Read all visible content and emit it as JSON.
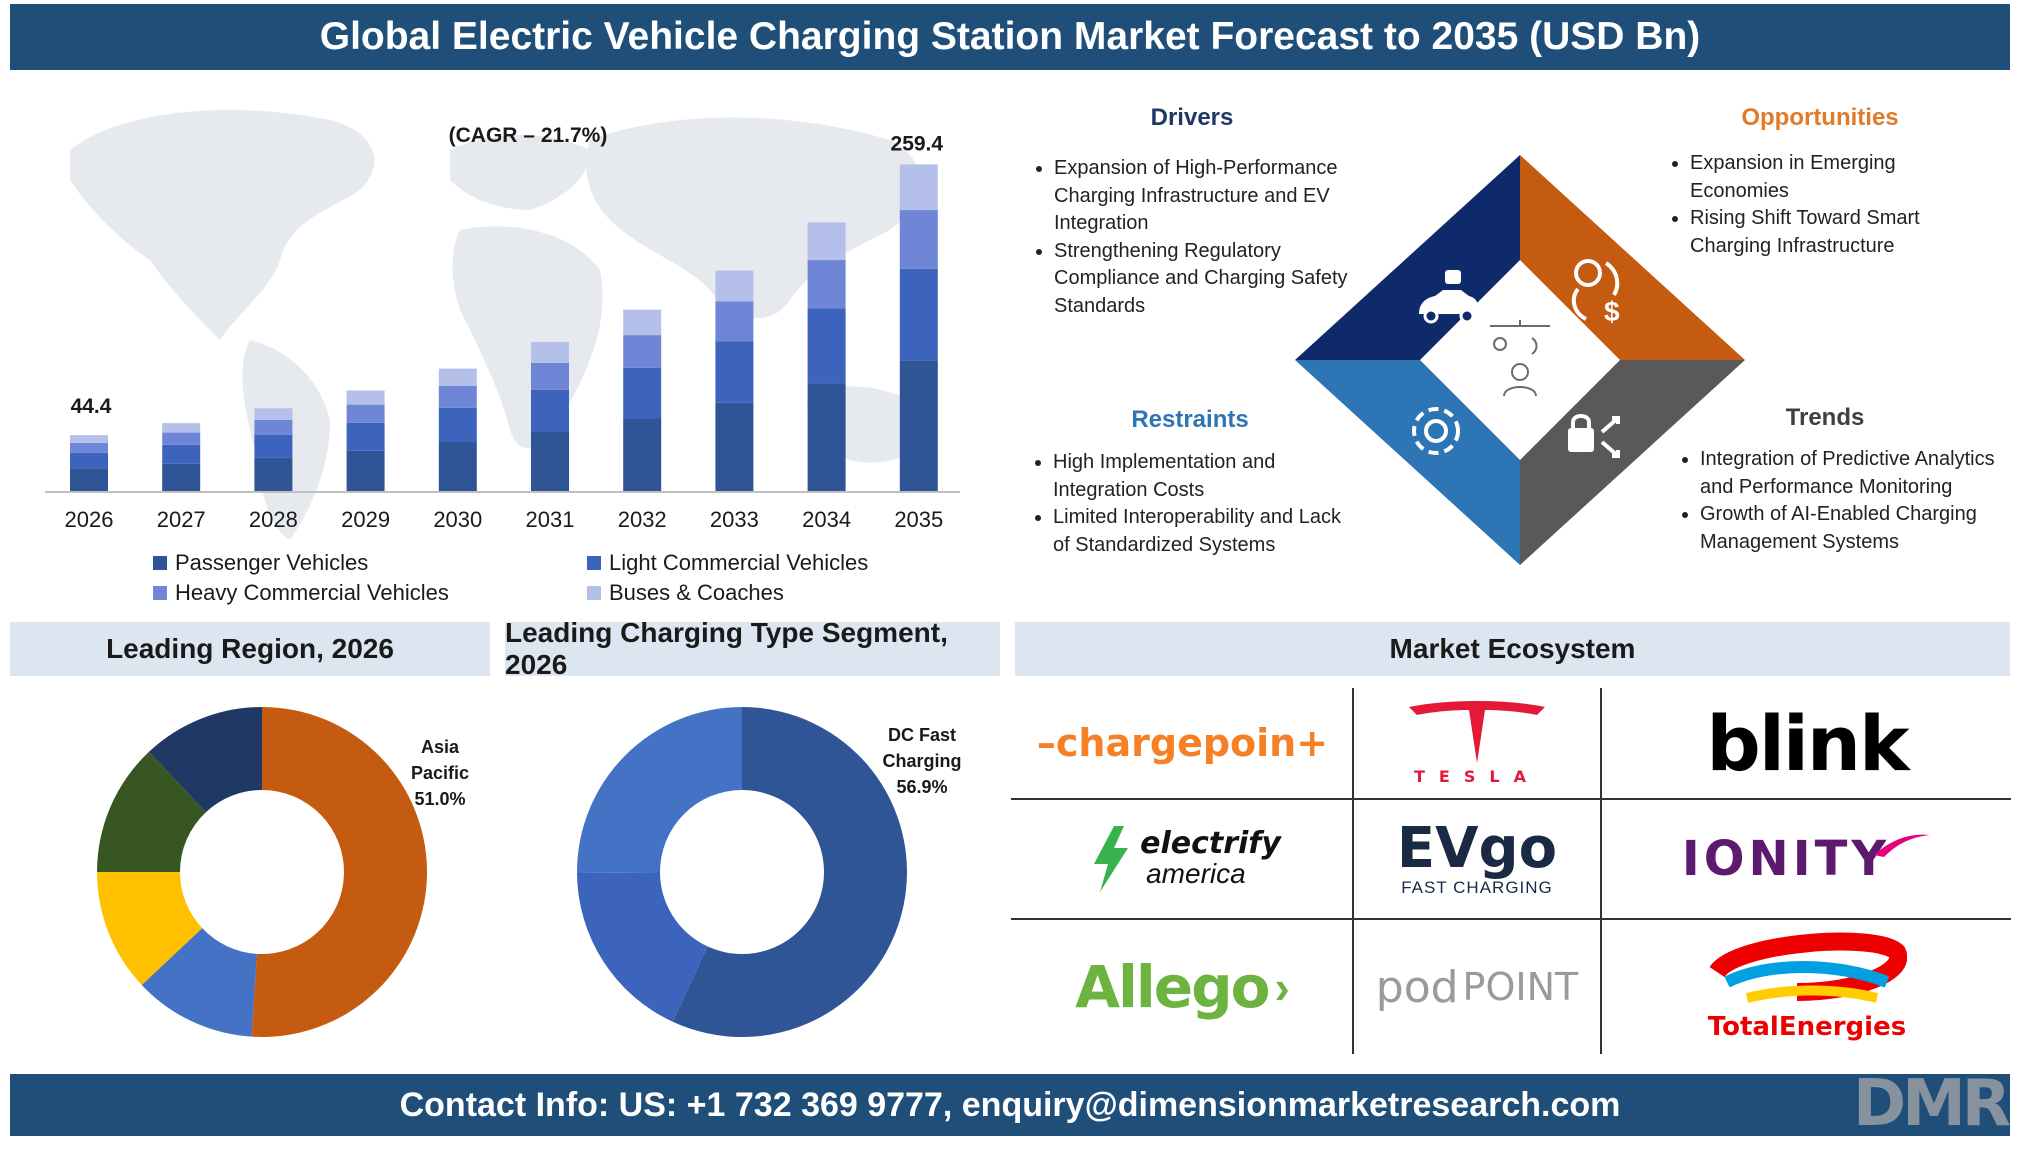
{
  "header": {
    "title": "Global Electric Vehicle Charging Station Market Forecast to 2035 (USD Bn)"
  },
  "footer": {
    "contact": "Contact Info: US: +1 732 369 9777, enquiry@dimensionmarketresearch.com"
  },
  "brand": {
    "logo_text": "DMR"
  },
  "chart_data": [
    {
      "type": "bar",
      "stacked": true,
      "categories": [
        "2026",
        "2027",
        "2028",
        "2029",
        "2030",
        "2031",
        "2032",
        "2033",
        "2034",
        "2035"
      ],
      "series": [
        {
          "name": "Passenger Vehicles",
          "color": "#2f5597",
          "values": [
            17.8,
            21.6,
            26.3,
            31.9,
            38.9,
            47.3,
            57.6,
            70.0,
            85.3,
            103.8
          ]
        },
        {
          "name": "Light Commercial Vehicles",
          "color": "#3c64bc",
          "values": [
            12.4,
            15.1,
            18.4,
            22.3,
            27.2,
            33.1,
            40.3,
            49.0,
            59.7,
            72.6
          ]
        },
        {
          "name": "Heavy Commercial Vehicles",
          "color": "#6f86d6",
          "values": [
            8.0,
            9.7,
            11.8,
            14.4,
            17.5,
            21.3,
            25.9,
            31.5,
            38.4,
            46.7
          ]
        },
        {
          "name": "Buses & Coaches",
          "color": "#b4c0ea",
          "values": [
            6.2,
            7.5,
            9.2,
            11.2,
            13.6,
            16.6,
            20.2,
            24.5,
            29.9,
            36.3
          ]
        }
      ],
      "totals_labels": {
        "first": "44.4",
        "last": "259.4"
      },
      "annotation": "(CAGR – 21.7%)",
      "ylim": [
        0,
        270
      ]
    },
    {
      "type": "pie",
      "title": "Leading Region, 2026",
      "donut": true,
      "slices": [
        {
          "value": 51.0,
          "color": "#c55a11"
        },
        {
          "value": 12.0,
          "color": "#4472c4"
        },
        {
          "value": 12.0,
          "color": "#ffc000"
        },
        {
          "value": 13.0,
          "color": "#375623"
        },
        {
          "value": 12.0,
          "color": "#1f3864"
        }
      ],
      "label": {
        "name_line1": "Asia",
        "name_line2": "Pacific",
        "pct": "51.0%"
      }
    },
    {
      "type": "pie",
      "title": "Leading Charging Type Segment, 2026",
      "donut": true,
      "slices": [
        {
          "value": 56.9,
          "color": "#2f5597"
        },
        {
          "value": 18.0,
          "color": "#3c64bc"
        },
        {
          "value": 25.1,
          "color": "#4472c4"
        }
      ],
      "label": {
        "name_line1": "DC Fast",
        "name_line2": "Charging",
        "pct": "56.9%"
      }
    }
  ],
  "quadrants": {
    "drivers": {
      "title": "Drivers",
      "items": [
        "Expansion of High-Performance Charging Infrastructure and EV Integration",
        "Strengthening Regulatory Compliance and Charging Safety Standards"
      ]
    },
    "opportunities": {
      "title": "Opportunities",
      "items": [
        "Expansion in Emerging Economies",
        "Rising Shift Toward Smart Charging Infrastructure"
      ]
    },
    "restraints": {
      "title": "Restraints",
      "items": [
        "High Implementation and Integration Costs",
        "Limited Interoperability and Lack of Standardized Systems"
      ]
    },
    "trends": {
      "title": "Trends",
      "items": [
        "Integration of Predictive Analytics and Performance Monitoring",
        "Growth of AI-Enabled Charging Management Systems"
      ]
    },
    "colors": {
      "drivers": "#0f2a6b",
      "opportunities": "#c55a11",
      "restraints": "#2e75b6",
      "trends": "#595959"
    },
    "icons": [
      "car-robot-icon",
      "charging-dollar-icon",
      "network-gear-icon",
      "lock-arrows-icon",
      "charging-person-icon"
    ]
  },
  "ecosystem": {
    "title": "Market Ecosystem",
    "logos": {
      "chargepoint": "–chargepoin+",
      "tesla": "TESLA",
      "blink": "blink",
      "electrify_line1": "electrify",
      "electrify_line2": "america",
      "evgo_main": "EVgo",
      "evgo_sub": "FAST CHARGING",
      "ionity": "IONITY",
      "allego": "Allego",
      "podpoint_pod": "pod",
      "podpoint_point": "POINT",
      "total": "TotalEnergies"
    }
  }
}
